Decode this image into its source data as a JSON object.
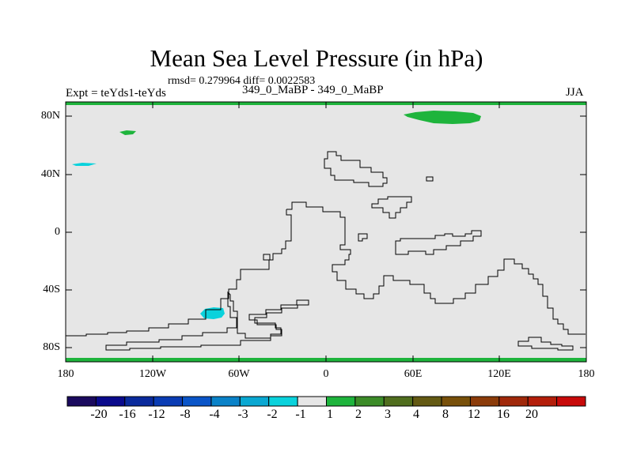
{
  "title": "Mean Sea Level Pressure (in hPa)",
  "stats": "rmsd= 0.279964  diff= 0.0022583",
  "left_label": "Expt = teYds1-teYds",
  "center_label": "349_0_MaBP - 349_0_MaBP",
  "right_label": "JJA",
  "map": {
    "projection": "cylindrical equidistant",
    "lon_range": [
      -180,
      180
    ],
    "lat_range": [
      -90,
      90
    ],
    "background_color": "#e6e6e6",
    "coastline_color": "#000000",
    "y_tick_labels": [
      "80N",
      "40N",
      "0",
      "40S",
      "80S"
    ],
    "x_tick_labels": [
      "180",
      "120W",
      "60W",
      "0",
      "60E",
      "120E",
      "180"
    ]
  },
  "colorbar": {
    "colors": [
      "#1a0a5e",
      "#0a0a8c",
      "#0a2a9c",
      "#0a3cb4",
      "#0a55c8",
      "#0a82c8",
      "#0aa8d2",
      "#0ad2dc",
      "#e6e6e6",
      "#1eb43c",
      "#3c8c28",
      "#506e1e",
      "#645a14",
      "#78500a",
      "#8c3c0a",
      "#a0280a",
      "#b41e0a",
      "#c80a0a"
    ],
    "labels": [
      "-20",
      "-16",
      "-12",
      "-8",
      "-4",
      "-3",
      "-2",
      "-1",
      "1",
      "2",
      "3",
      "4",
      "8",
      "12",
      "16",
      "20"
    ]
  }
}
